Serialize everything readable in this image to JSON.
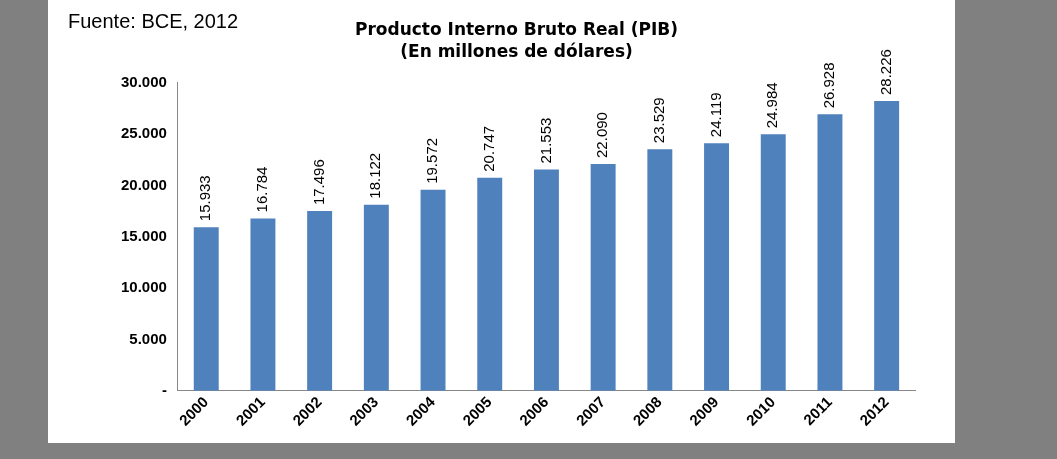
{
  "chart_data": {
    "type": "bar",
    "title": "Producto Interno Bruto Real (PIB)",
    "subtitle": "(En millones de dólares)",
    "categories": [
      "2000",
      "2001",
      "2002",
      "2003",
      "2004",
      "2005",
      "2006",
      "2007",
      "2008",
      "2009",
      "2010",
      "2011",
      "2012"
    ],
    "values": [
      15933,
      16784,
      17496,
      18122,
      19572,
      20747,
      21553,
      22090,
      23529,
      24119,
      24984,
      26928,
      28226
    ],
    "value_labels": [
      "15.933",
      "16.784",
      "17.496",
      "18.122",
      "19.572",
      "20.747",
      "21.553",
      "22.090",
      "23.529",
      "24.119",
      "24.984",
      "26.928",
      "28.226"
    ],
    "color": "#4f81bd",
    "ylim": [
      0,
      30000
    ],
    "yticks": [
      {
        "value": 0,
        "label": "-"
      },
      {
        "value": 5000,
        "label": "5.000"
      },
      {
        "value": 10000,
        "label": "10.000"
      },
      {
        "value": 15000,
        "label": "15.000"
      },
      {
        "value": 20000,
        "label": "20.000"
      },
      {
        "value": 25000,
        "label": "25.000"
      },
      {
        "value": 30000,
        "label": "30.000"
      }
    ],
    "annotations": [
      "Fuente: BCE, 2012"
    ]
  }
}
